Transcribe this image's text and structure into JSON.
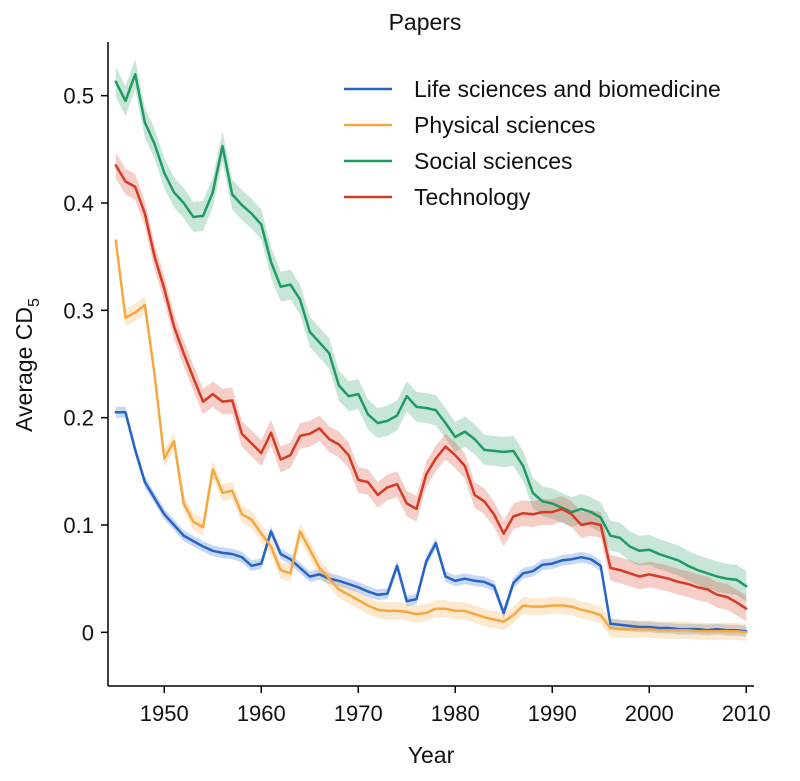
{
  "chart_data": {
    "type": "line",
    "title": "Papers",
    "xlabel": "Year",
    "ylabel": "Average CD",
    "ylabel_subscript": "5",
    "xlim": [
      1944.2,
      2010.8
    ],
    "ylim": [
      -0.05,
      0.55
    ],
    "xticks": [
      1950,
      1960,
      1970,
      1980,
      1990,
      2000,
      2010
    ],
    "yticks": [
      0,
      0.1,
      0.2,
      0.3,
      0.4,
      0.5
    ],
    "ytick_labels": [
      "0",
      "0.1",
      "0.2",
      "0.3",
      "0.4",
      "0.5"
    ],
    "grid": false,
    "legend_position": "top-right",
    "x": [
      1945,
      1946,
      1947,
      1948,
      1949,
      1950,
      1951,
      1952,
      1953,
      1954,
      1955,
      1956,
      1957,
      1958,
      1959,
      1960,
      1961,
      1962,
      1963,
      1964,
      1965,
      1966,
      1967,
      1968,
      1969,
      1970,
      1971,
      1972,
      1973,
      1974,
      1975,
      1976,
      1977,
      1978,
      1979,
      1980,
      1981,
      1982,
      1983,
      1984,
      1985,
      1986,
      1987,
      1988,
      1989,
      1990,
      1991,
      1992,
      1993,
      1994,
      1995,
      1996,
      1997,
      1998,
      1999,
      2000,
      2001,
      2002,
      2003,
      2004,
      2005,
      2006,
      2007,
      2008,
      2009,
      2010
    ],
    "series": [
      {
        "name": "Life sciences and biomedicine",
        "color": "#2563c7",
        "values": [
          0.205,
          0.205,
          0.17,
          0.14,
          0.125,
          0.11,
          0.1,
          0.09,
          0.085,
          0.08,
          0.076,
          0.074,
          0.073,
          0.07,
          0.062,
          0.064,
          0.094,
          0.073,
          0.068,
          0.06,
          0.052,
          0.054,
          0.05,
          0.048,
          0.045,
          0.042,
          0.038,
          0.035,
          0.036,
          0.062,
          0.029,
          0.031,
          0.066,
          0.083,
          0.052,
          0.048,
          0.05,
          0.048,
          0.047,
          0.043,
          0.018,
          0.046,
          0.055,
          0.057,
          0.063,
          0.064,
          0.067,
          0.068,
          0.07,
          0.068,
          0.062,
          0.008,
          0.007,
          0.006,
          0.005,
          0.005,
          0.004,
          0.004,
          0.003,
          0.003,
          0.003,
          0.002,
          0.003,
          0.002,
          0.002,
          0.001
        ],
        "band": 0.005
      },
      {
        "name": "Physical sciences",
        "color": "#f5a742",
        "values": [
          0.365,
          0.293,
          0.298,
          0.305,
          0.24,
          0.162,
          0.178,
          0.12,
          0.103,
          0.098,
          0.152,
          0.13,
          0.132,
          0.11,
          0.105,
          0.092,
          0.08,
          0.058,
          0.055,
          0.094,
          0.077,
          0.06,
          0.05,
          0.04,
          0.035,
          0.03,
          0.025,
          0.021,
          0.02,
          0.02,
          0.019,
          0.017,
          0.018,
          0.022,
          0.022,
          0.02,
          0.02,
          0.017,
          0.014,
          0.012,
          0.01,
          0.016,
          0.025,
          0.024,
          0.024,
          0.025,
          0.025,
          0.024,
          0.021,
          0.019,
          0.016,
          0.004,
          0.003,
          0.003,
          0.003,
          0.003,
          0.002,
          0.002,
          0.002,
          0.002,
          0.001,
          0.001,
          0.001,
          0.001,
          0.001,
          0.0
        ],
        "band": 0.008
      },
      {
        "name": "Social sciences",
        "color": "#1f9a64",
        "values": [
          0.513,
          0.495,
          0.52,
          0.475,
          0.455,
          0.428,
          0.41,
          0.4,
          0.387,
          0.388,
          0.41,
          0.453,
          0.408,
          0.398,
          0.39,
          0.38,
          0.345,
          0.322,
          0.324,
          0.31,
          0.28,
          0.27,
          0.26,
          0.23,
          0.22,
          0.222,
          0.203,
          0.195,
          0.197,
          0.202,
          0.22,
          0.21,
          0.209,
          0.207,
          0.195,
          0.182,
          0.187,
          0.18,
          0.17,
          0.169,
          0.168,
          0.169,
          0.155,
          0.13,
          0.122,
          0.12,
          0.116,
          0.112,
          0.115,
          0.112,
          0.107,
          0.09,
          0.088,
          0.08,
          0.076,
          0.077,
          0.073,
          0.07,
          0.067,
          0.062,
          0.058,
          0.055,
          0.052,
          0.05,
          0.049,
          0.043
        ],
        "band": 0.014
      },
      {
        "name": "Technology",
        "color": "#d63a24",
        "values": [
          0.435,
          0.42,
          0.415,
          0.39,
          0.35,
          0.32,
          0.285,
          0.26,
          0.237,
          0.215,
          0.222,
          0.215,
          0.216,
          0.185,
          0.176,
          0.167,
          0.186,
          0.161,
          0.165,
          0.183,
          0.185,
          0.19,
          0.18,
          0.175,
          0.165,
          0.142,
          0.14,
          0.128,
          0.135,
          0.138,
          0.12,
          0.115,
          0.147,
          0.162,
          0.173,
          0.165,
          0.155,
          0.128,
          0.122,
          0.11,
          0.092,
          0.108,
          0.111,
          0.11,
          0.112,
          0.112,
          0.115,
          0.11,
          0.1,
          0.102,
          0.1,
          0.06,
          0.058,
          0.055,
          0.052,
          0.054,
          0.052,
          0.05,
          0.047,
          0.045,
          0.042,
          0.04,
          0.035,
          0.033,
          0.028,
          0.022
        ],
        "band": 0.012
      }
    ]
  }
}
